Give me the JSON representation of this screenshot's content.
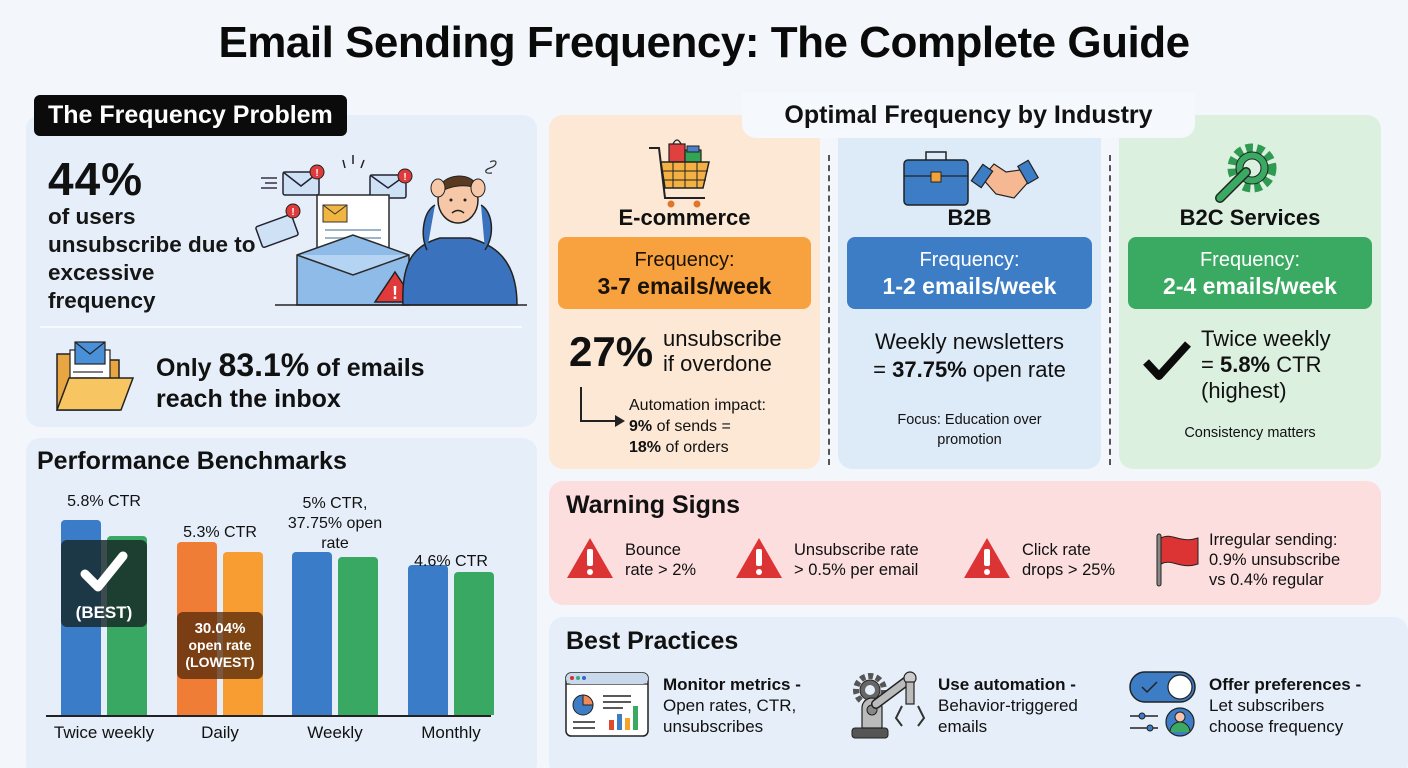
{
  "title": "Email Sending Frequency: The Complete Guide",
  "frequency_problem": {
    "tag": "The Frequency Problem",
    "stat": "44%",
    "stat_text": "of users unsubscribe due to excessive frequency",
    "inbox_prefix": "Only ",
    "inbox_pct": "83.1%",
    "inbox_suffix": " of emails",
    "inbox_line2": "reach the inbox"
  },
  "benchmarks": {
    "title": "Performance Benchmarks",
    "best_label": "(BEST)",
    "lowest_label_1": "30.04%",
    "lowest_label_2": "open rate",
    "lowest_label_3": "(LOWEST)"
  },
  "chart_data": {
    "type": "bar",
    "title": "Performance Benchmarks",
    "categories": [
      "Twice weekly",
      "Daily",
      "Weekly",
      "Monthly"
    ],
    "annotations": [
      "5.8% CTR",
      "5.3% CTR",
      "5% CTR, 37.75% open rate",
      "4.6% CTR"
    ],
    "series": [
      {
        "name": "bar 1",
        "values": [
          5.8,
          5.3,
          5.0,
          4.6
        ]
      },
      {
        "name": "bar 2",
        "values": [
          5.5,
          5.0,
          4.85,
          4.4
        ]
      }
    ],
    "highlights": {
      "Twice weekly": "(BEST)",
      "Daily": "30.04% open rate (LOWEST)"
    },
    "colors": {
      "blue": "#3b7cc8",
      "green": "#38a862",
      "orange": "#f07d36",
      "light_orange": "#f89d32"
    },
    "xlabel": "",
    "ylabel": "",
    "grid": false,
    "legend": "none"
  },
  "industry": {
    "title": "Optimal Frequency by Industry",
    "ecommerce": {
      "name": "E-commerce",
      "freq_label": "Frequency:",
      "freq_value": "3-7 emails/week",
      "stat": "27%",
      "stat_line1": "unsubscribe",
      "stat_line2": "if overdone",
      "auto_line1": "Automation impact:",
      "auto_b1": "9%",
      "auto_line2": " of sends =",
      "auto_b2": "18%",
      "auto_line3": " of orders"
    },
    "b2b": {
      "name": "B2B",
      "freq_label": "Frequency:",
      "freq_value": "1-2 emails/week",
      "line1": "Weekly newsletters",
      "line2_pre": "= ",
      "line2_b": "37.75%",
      "line2_post": " open rate",
      "focus": "Focus: Education over promotion"
    },
    "b2c": {
      "name": "B2C Services",
      "freq_label": "Frequency:",
      "freq_value": "2-4 emails/week",
      "line1": "Twice weekly",
      "line2_pre": "= ",
      "line2_b": "5.8%",
      "line2_post": " CTR",
      "line3": "(highest)",
      "note": "Consistency matters"
    }
  },
  "warning": {
    "title": "Warning Signs",
    "items": [
      {
        "l1": "Bounce",
        "l2": "rate > 2%"
      },
      {
        "l1": "Unsubscribe rate",
        "l2": "> 0.5% per email"
      },
      {
        "l1": "Click rate",
        "l2": "drops > 25%"
      },
      {
        "l1": "Irregular sending:",
        "l2": "0.9% unsubscribe",
        "l3": "vs 0.4% regular"
      }
    ]
  },
  "best_practices": {
    "title": "Best Practices",
    "items": [
      {
        "head": "Monitor metrics -",
        "l1": "Open rates, CTR,",
        "l2": "unsubscribes"
      },
      {
        "head": "Use automation -",
        "l1": "Behavior-triggered",
        "l2": "emails"
      },
      {
        "head": "Offer preferences -",
        "l1": "Let subscribers",
        "l2": "choose frequency"
      }
    ]
  }
}
